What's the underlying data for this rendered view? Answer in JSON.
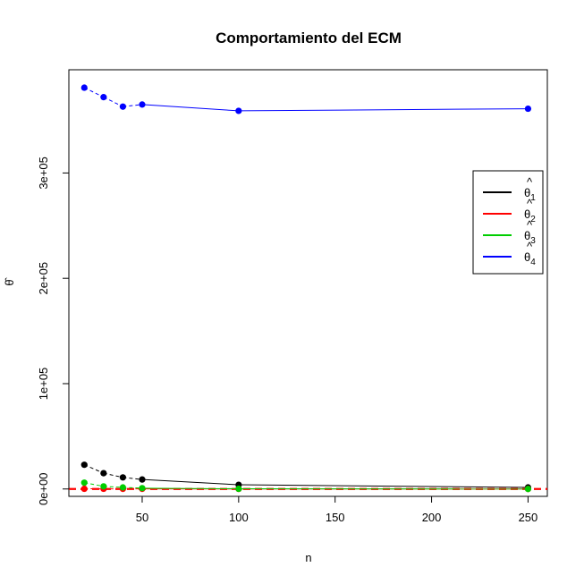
{
  "chart_data": {
    "type": "line",
    "title": "Comportamiento del ECM",
    "xlabel": "n",
    "ylabel": "θ̂",
    "xlim": [
      12,
      260
    ],
    "ylim": [
      -7000,
      398000
    ],
    "xticks": [
      50,
      100,
      150,
      200,
      250
    ],
    "xtick_labels": [
      "50",
      "100",
      "150",
      "200",
      "250"
    ],
    "yticks": [
      0,
      100000,
      200000,
      300000
    ],
    "ytick_labels": [
      "0e+00",
      "1e+05",
      "2e+05",
      "3e+05"
    ],
    "x": [
      20,
      30,
      40,
      50,
      100,
      250
    ],
    "series": [
      {
        "name": "θ̂1",
        "legend_base": "θ",
        "legend_sub": "1",
        "color": "#000000",
        "values": [
          23000,
          15000,
          11000,
          9000,
          4000,
          1500
        ]
      },
      {
        "name": "θ̂2",
        "legend_base": "θ",
        "legend_sub": "2",
        "color": "#ff0000",
        "values": [
          200,
          150,
          100,
          100,
          50,
          30
        ]
      },
      {
        "name": "θ̂3",
        "legend_base": "θ",
        "legend_sub": "3",
        "color": "#00cd00",
        "values": [
          6000,
          2500,
          1500,
          800,
          200,
          0
        ]
      },
      {
        "name": "θ̂4",
        "legend_base": "θ",
        "legend_sub": "4",
        "color": "#0000ff",
        "values": [
          381000,
          372000,
          363000,
          365000,
          359000,
          361000
        ]
      }
    ],
    "dashed_segments_up_to_index": 3,
    "reference_line": {
      "y": 0,
      "color": "#ff0000",
      "style": "dashed"
    },
    "legend_position": "top-right",
    "grid": false
  }
}
